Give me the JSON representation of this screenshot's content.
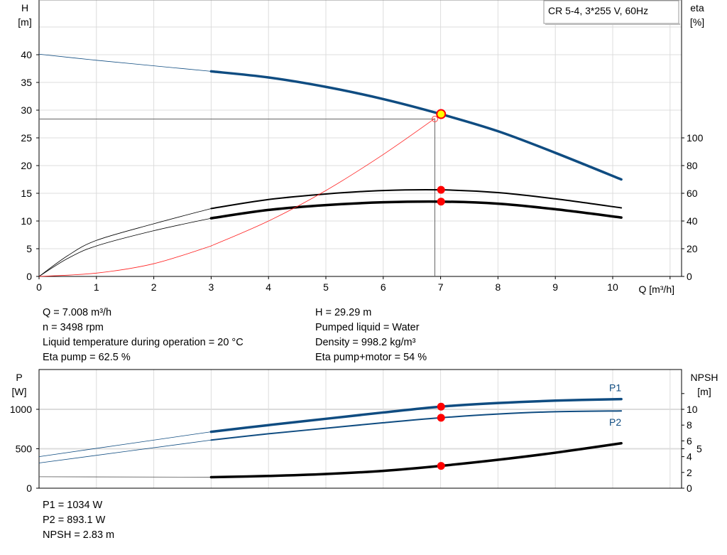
{
  "chart_data": [
    {
      "type": "line",
      "title": "CR 5-4, 3*255 V, 60Hz",
      "xlabel": "Q [m³/h]",
      "ylabel": "H\n[m]",
      "y2label": "eta\n[%]",
      "xlim": [
        0,
        11
      ],
      "ylim": [
        0,
        50
      ],
      "y2lim": [
        0,
        200
      ],
      "xticks": [
        "0",
        "1",
        "2",
        "3",
        "4",
        "5",
        "6",
        "7",
        "8",
        "9",
        "10"
      ],
      "yticks": [
        "0",
        "5",
        "10",
        "15",
        "20",
        "25",
        "30",
        "35",
        "40"
      ],
      "y2ticks": [
        "0",
        "20",
        "40",
        "60",
        "80",
        "100"
      ],
      "grid": true,
      "series": [
        {
          "role": "H",
          "axis": "left",
          "color": "#0f4c81",
          "x": [
            0,
            1,
            2,
            3,
            4,
            5,
            6,
            7,
            8,
            9,
            10.15
          ],
          "y": [
            40.1,
            39,
            38,
            37,
            35.9,
            34.2,
            32,
            29.3,
            26.2,
            22.3,
            17.5
          ]
        },
        {
          "role": "eta-pump",
          "axis": "right",
          "color": "#000000",
          "x": [
            0,
            0.5,
            1,
            2,
            3,
            4,
            5,
            6,
            7,
            8,
            9,
            10.15
          ],
          "y": [
            0,
            15,
            26,
            38,
            49,
            55.5,
            59.5,
            62,
            62.5,
            60.5,
            56,
            49.5
          ]
        },
        {
          "role": "eta-pump-motor",
          "axis": "right",
          "color": "#000000",
          "x": [
            0,
            0.5,
            1,
            2,
            3,
            4,
            5,
            6,
            7,
            8,
            9,
            10.15
          ],
          "y": [
            0,
            13,
            22,
            33,
            42,
            48,
            51.5,
            53.5,
            54,
            52.5,
            48.5,
            42.5
          ]
        },
        {
          "role": "system-curve",
          "axis": "left",
          "color": "#ff2020",
          "x": [
            0,
            1,
            2,
            3,
            4,
            5,
            6,
            6.9
          ],
          "y": [
            0,
            0.6,
            2.3,
            5.5,
            10,
            15.5,
            22,
            28.5
          ]
        }
      ],
      "duty_point": {
        "q": 7.008,
        "h": 29.29,
        "eta_pump": 62.5,
        "eta_pump_motor": 54
      },
      "reference_lines": {
        "h": 28.4,
        "q": 6.9
      }
    },
    {
      "type": "line",
      "ylabel": "P\n[W]",
      "y2label": "NPSH\n[m]",
      "xlim": [
        0,
        11
      ],
      "ylim": [
        0,
        1500
      ],
      "y2lim": [
        0,
        15
      ],
      "yticks": [
        "0",
        "500",
        "1000"
      ],
      "y2ticks": [
        "0",
        "2",
        "4",
        "5",
        "6",
        "8",
        "10"
      ],
      "grid": true,
      "series": [
        {
          "name": "P1",
          "axis": "left",
          "color": "#0f4c81",
          "x": [
            0,
            3,
            4,
            5,
            6,
            7,
            8,
            9,
            10.15
          ],
          "y": [
            400,
            715,
            800,
            880,
            960,
            1034,
            1080,
            1110,
            1130
          ]
        },
        {
          "name": "P2",
          "axis": "left",
          "color": "#0f4c81",
          "x": [
            0,
            3,
            4,
            5,
            6,
            7,
            8,
            9,
            10.15
          ],
          "y": [
            320,
            610,
            690,
            760,
            830,
            893,
            940,
            970,
            980
          ]
        },
        {
          "role": "NPSH",
          "axis": "right",
          "color": "#000000",
          "x": [
            0,
            3,
            4,
            5,
            6,
            7,
            8,
            9,
            10.15
          ],
          "y": [
            1.45,
            1.4,
            1.55,
            1.8,
            2.2,
            2.83,
            3.6,
            4.5,
            5.7
          ]
        }
      ],
      "duty_point": {
        "q": 7.008,
        "p1": 1034,
        "p2": 893.1,
        "npsh": 2.83
      }
    }
  ],
  "info_top_left": [
    "Q = 7.008 m³/h",
    "n = 3498 rpm",
    "Liquid temperature during operation = 20 °C",
    "Eta pump = 62.5 %"
  ],
  "info_top_right": [
    "H = 29.29 m",
    "Pumped liquid = Water",
    "Density = 998.2 kg/m³",
    "Eta pump+motor = 54 %"
  ],
  "info_bottom": [
    "P1 = 1034 W",
    "P2 = 893.1 W",
    "NPSH = 2.83 m"
  ]
}
